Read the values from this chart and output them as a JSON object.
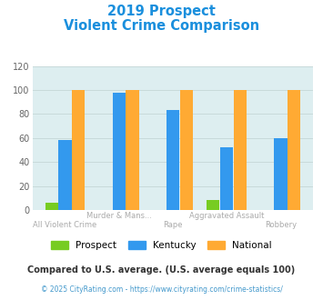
{
  "title_line1": "2019 Prospect",
  "title_line2": "Violent Crime Comparison",
  "title_color": "#1a8fdd",
  "categories_top": [
    "",
    "Murder & Mans...",
    "",
    "Aggravated Assault",
    ""
  ],
  "categories_bot": [
    "All Violent Crime",
    "",
    "Rape",
    "",
    "Robbery"
  ],
  "prospect_values": [
    6,
    0,
    0,
    8,
    0
  ],
  "kentucky_values": [
    58,
    98,
    83,
    52,
    60
  ],
  "national_values": [
    100,
    100,
    100,
    100,
    100
  ],
  "prospect_color": "#77cc22",
  "kentucky_color": "#3399ee",
  "national_color": "#ffaa33",
  "ylim": [
    0,
    120
  ],
  "yticks": [
    0,
    20,
    40,
    60,
    80,
    100,
    120
  ],
  "bg_color": "#ddeef0",
  "legend_labels": [
    "Prospect",
    "Kentucky",
    "National"
  ],
  "footnote1": "Compared to U.S. average. (U.S. average equals 100)",
  "footnote2": "© 2025 CityRating.com - https://www.cityrating.com/crime-statistics/",
  "footnote1_color": "#333333",
  "footnote2_color": "#4499cc",
  "xtick_color": "#aaaaaa"
}
